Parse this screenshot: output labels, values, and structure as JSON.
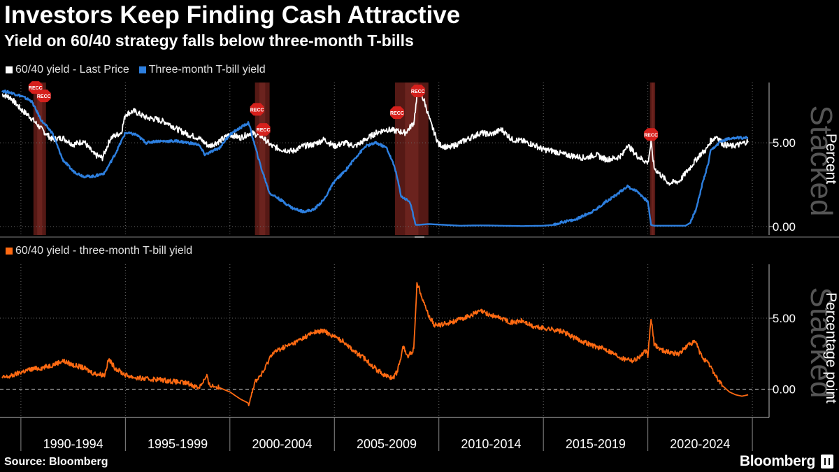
{
  "title": "Investors Keep Finding Cash Attractive",
  "subtitle": "Yield on 60/40 strategy falls below three-month T-bills",
  "source": "Source: Bloomberg",
  "brand": "Bloomberg",
  "colors": {
    "background": "#000000",
    "white_series": "#ffffff",
    "blue_series": "#2d7fdf",
    "orange_series": "#ff6a12",
    "recession": "#5a1a16",
    "grid": "#6a6a6a"
  },
  "chart_data": [
    {
      "type": "line",
      "legend_placement": "top-left",
      "ylabel": "Percent",
      "watermark": "Stacked",
      "ylim": [
        -0.5,
        8.6
      ],
      "yticks": [
        0,
        5
      ],
      "ytick_labels": [
        "0.00",
        "5.00"
      ],
      "recession_marker": "RECC",
      "recessions": [
        [
          1990.6,
          1991.2
        ],
        [
          2001.2,
          2001.9
        ],
        [
          2007.9,
          2009.5
        ],
        [
          2020.1,
          2020.35
        ]
      ],
      "series": [
        {
          "name": "60/40 yield - Last Price",
          "color": "#ffffff",
          "x": [
            1989.1,
            1989.5,
            1990.0,
            1990.4,
            1991.0,
            1991.5,
            1992.0,
            1992.5,
            1993.0,
            1993.5,
            1993.9,
            1994.3,
            1994.8,
            1995.0,
            1995.4,
            1996.0,
            1996.5,
            1997.0,
            1997.5,
            1998.0,
            1998.5,
            1998.8,
            1999.0,
            1999.5,
            2000.0,
            2000.5,
            2001.0,
            2001.5,
            2002.0,
            2002.5,
            2003.0,
            2003.5,
            2004.0,
            2004.5,
            2005.0,
            2005.5,
            2006.0,
            2006.5,
            2007.0,
            2007.5,
            2008.0,
            2008.4,
            2008.8,
            2009.0,
            2009.3,
            2009.6,
            2010.0,
            2010.5,
            2011.0,
            2011.5,
            2012.0,
            2012.5,
            2013.0,
            2013.5,
            2014.0,
            2014.5,
            2015.0,
            2015.5,
            2016.0,
            2016.5,
            2017.0,
            2017.5,
            2018.0,
            2018.5,
            2018.8,
            2019.0,
            2019.5,
            2020.0,
            2020.15,
            2020.3,
            2020.6,
            2021.0,
            2021.5,
            2022.0,
            2022.5,
            2022.8,
            2023.0,
            2023.3,
            2023.6,
            2024.0,
            2024.4,
            2024.8
          ],
          "y": [
            7.9,
            7.7,
            7.0,
            6.6,
            5.8,
            5.2,
            5.3,
            4.9,
            5.1,
            4.3,
            4.1,
            5.3,
            5.6,
            6.7,
            6.9,
            6.5,
            6.4,
            6.2,
            5.8,
            5.5,
            5.3,
            5.0,
            4.8,
            5.1,
            5.5,
            5.3,
            5.6,
            5.4,
            4.8,
            4.6,
            4.5,
            4.8,
            4.9,
            5.2,
            4.8,
            5.0,
            4.8,
            5.2,
            5.6,
            5.8,
            5.7,
            5.6,
            6.2,
            8.2,
            7.5,
            6.2,
            4.9,
            4.7,
            5.0,
            5.3,
            5.6,
            5.5,
            5.8,
            5.2,
            5.1,
            4.9,
            4.6,
            4.5,
            4.3,
            4.2,
            4.1,
            4.3,
            4.0,
            4.1,
            4.3,
            4.9,
            4.2,
            3.8,
            5.0,
            3.5,
            3.1,
            2.6,
            2.7,
            3.5,
            4.3,
            4.6,
            5.1,
            5.4,
            4.9,
            4.8,
            4.9,
            5.1
          ]
        },
        {
          "name": "Three-month T-bill yield",
          "color": "#2d7fdf",
          "x": [
            1989.1,
            1989.5,
            1990.0,
            1990.5,
            1991.0,
            1991.5,
            1992.0,
            1992.5,
            1993.0,
            1993.5,
            1994.0,
            1994.5,
            1995.0,
            1995.5,
            1996.0,
            1996.5,
            1997.0,
            1997.5,
            1998.0,
            1998.5,
            1998.8,
            1999.0,
            1999.5,
            2000.0,
            2000.5,
            2000.9,
            2001.2,
            2001.5,
            2001.9,
            2002.3,
            2003.0,
            2003.5,
            2004.0,
            2004.5,
            2005.0,
            2005.5,
            2006.0,
            2006.5,
            2007.0,
            2007.5,
            2007.9,
            2008.2,
            2008.6,
            2008.9,
            2009.0,
            2009.5,
            2010.0,
            2011.0,
            2012.0,
            2013.0,
            2014.0,
            2015.0,
            2015.5,
            2016.0,
            2016.5,
            2017.0,
            2017.5,
            2018.0,
            2018.5,
            2019.0,
            2019.5,
            2019.9,
            2020.0,
            2020.15,
            2020.3,
            2021.0,
            2021.8,
            2022.0,
            2022.3,
            2022.6,
            2022.9,
            2023.0,
            2023.5,
            2024.0,
            2024.5,
            2024.8
          ],
          "y": [
            8.1,
            8.0,
            7.8,
            7.5,
            6.3,
            5.6,
            4.0,
            3.3,
            3.0,
            3.0,
            3.2,
            4.3,
            5.6,
            5.5,
            5.0,
            5.1,
            5.1,
            5.1,
            5.0,
            4.9,
            4.3,
            4.4,
            4.7,
            5.5,
            5.9,
            6.2,
            4.8,
            3.5,
            2.0,
            1.7,
            1.1,
            0.9,
            1.0,
            1.6,
            2.7,
            3.3,
            4.1,
            4.8,
            5.0,
            4.7,
            3.5,
            1.8,
            1.5,
            0.1,
            0.1,
            0.15,
            0.12,
            0.05,
            0.07,
            0.05,
            0.03,
            0.05,
            0.1,
            0.3,
            0.4,
            0.7,
            1.0,
            1.5,
            1.9,
            2.4,
            2.1,
            1.6,
            1.5,
            0.1,
            0.05,
            0.05,
            0.05,
            0.2,
            1.0,
            2.5,
            3.8,
            4.5,
            5.1,
            5.3,
            5.3,
            5.3
          ]
        }
      ]
    },
    {
      "type": "line",
      "legend_placement": "top-left",
      "ylabel": "Percentage point",
      "watermark": "Stacked",
      "ylim": [
        -2.0,
        8.8
      ],
      "yticks": [
        0,
        5
      ],
      "ytick_labels": [
        "0.00",
        "5.00"
      ],
      "xticks": [
        "1990-1994",
        "1995-1999",
        "2000-2004",
        "2005-2009",
        "2010-2014",
        "2015-2019",
        "2020-2024"
      ],
      "series": [
        {
          "name": "60/40 yield - three-month T-bill yield",
          "color": "#ff6a12",
          "x": [
            1989.1,
            1989.5,
            1990.0,
            1990.5,
            1991.0,
            1991.5,
            1992.0,
            1992.5,
            1993.0,
            1993.5,
            1994.0,
            1994.2,
            1994.5,
            1995.0,
            1995.5,
            1996.0,
            1996.5,
            1997.0,
            1997.5,
            1998.0,
            1998.5,
            1998.9,
            1999.0,
            1999.5,
            2000.0,
            2000.5,
            2000.9,
            2001.2,
            2001.6,
            2002.0,
            2002.5,
            2003.0,
            2003.5,
            2004.0,
            2004.5,
            2005.0,
            2005.5,
            2006.0,
            2006.5,
            2007.0,
            2007.5,
            2007.8,
            2008.0,
            2008.3,
            2008.5,
            2008.8,
            2008.95,
            2009.2,
            2009.5,
            2009.8,
            2010.0,
            2010.5,
            2011.0,
            2011.5,
            2012.0,
            2012.5,
            2013.0,
            2013.5,
            2014.0,
            2014.5,
            2015.0,
            2015.5,
            2016.0,
            2016.5,
            2017.0,
            2017.5,
            2018.0,
            2018.5,
            2018.9,
            2019.0,
            2019.3,
            2019.7,
            2019.9,
            2020.0,
            2020.15,
            2020.3,
            2020.6,
            2021.0,
            2021.5,
            2022.0,
            2022.3,
            2022.5,
            2022.7,
            2023.0,
            2023.3,
            2023.6,
            2023.9,
            2024.2,
            2024.5,
            2024.8
          ],
          "y": [
            0.8,
            0.9,
            1.2,
            1.4,
            1.5,
            1.7,
            2.0,
            1.7,
            1.5,
            1.1,
            1.0,
            2.1,
            1.5,
            1.0,
            0.8,
            0.7,
            0.7,
            0.6,
            0.5,
            0.4,
            0.1,
            0.9,
            0.3,
            0.1,
            -0.2,
            -0.7,
            -1.0,
            0.5,
            1.2,
            2.5,
            2.9,
            3.2,
            3.6,
            4.0,
            4.1,
            3.7,
            3.3,
            2.6,
            2.1,
            1.4,
            0.9,
            0.8,
            1.2,
            3.0,
            2.3,
            2.8,
            7.5,
            6.5,
            5.2,
            4.5,
            4.5,
            4.7,
            4.9,
            5.2,
            5.5,
            5.2,
            5.0,
            4.7,
            4.8,
            4.4,
            4.3,
            4.2,
            4.0,
            3.6,
            3.3,
            3.0,
            2.8,
            2.4,
            2.1,
            2.2,
            2.0,
            2.4,
            2.7,
            2.3,
            5.0,
            3.2,
            2.8,
            2.6,
            2.5,
            3.2,
            3.3,
            2.5,
            2.1,
            1.6,
            0.8,
            0.2,
            -0.2,
            -0.4,
            -0.5,
            -0.4
          ]
        }
      ]
    }
  ]
}
